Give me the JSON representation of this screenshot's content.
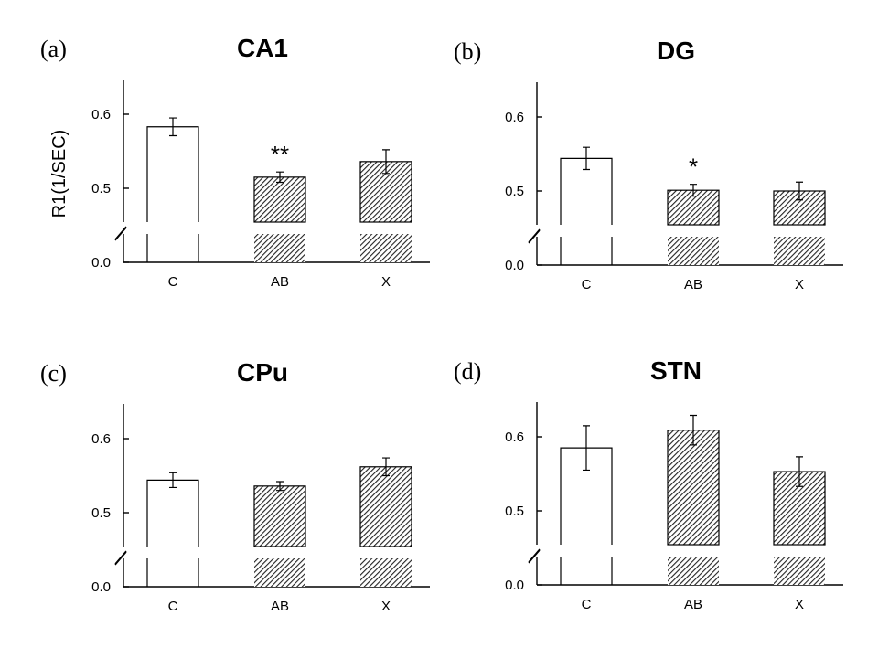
{
  "chart_data": [
    {
      "type": "bar",
      "letter": "(a)",
      "title": "CA1",
      "ylabel": "R1(1/SEC)",
      "yticks": [
        "0.0",
        "0.5",
        "0.6"
      ],
      "ybreak": true,
      "ylim": [
        0.43,
        0.65
      ],
      "categories": [
        "C",
        "AB",
        "X"
      ],
      "values": [
        0.583,
        0.515,
        0.536
      ],
      "errors": [
        0.012,
        0.007,
        0.016
      ],
      "patterns": [
        "open",
        "hatched",
        "hatched"
      ],
      "significance": [
        "",
        "**",
        ""
      ]
    },
    {
      "type": "bar",
      "letter": "(b)",
      "title": "DG",
      "ylabel": "",
      "yticks": [
        "0.0",
        "0.5",
        "0.6"
      ],
      "ybreak": true,
      "ylim": [
        0.43,
        0.65
      ],
      "categories": [
        "C",
        "AB",
        "X"
      ],
      "values": [
        0.544,
        0.501,
        0.5
      ],
      "errors": [
        0.015,
        0.008,
        0.012
      ],
      "patterns": [
        "open",
        "hatched",
        "hatched"
      ],
      "significance": [
        "",
        "*",
        ""
      ]
    },
    {
      "type": "bar",
      "letter": "(c)",
      "title": "CPu",
      "ylabel": "",
      "yticks": [
        "0.0",
        "0.5",
        "0.6"
      ],
      "ybreak": true,
      "ylim": [
        0.43,
        0.65
      ],
      "categories": [
        "C",
        "AB",
        "X"
      ],
      "values": [
        0.544,
        0.536,
        0.562
      ],
      "errors": [
        0.01,
        0.006,
        0.012
      ],
      "patterns": [
        "open",
        "hatched",
        "hatched"
      ],
      "significance": [
        "",
        "",
        ""
      ]
    },
    {
      "type": "bar",
      "letter": "(d)",
      "title": "STN",
      "ylabel": "",
      "yticks": [
        "0.0",
        "0.5",
        "0.6"
      ],
      "ybreak": true,
      "ylim": [
        0.43,
        0.65
      ],
      "categories": [
        "C",
        "AB",
        "X"
      ],
      "values": [
        0.585,
        0.609,
        0.553
      ],
      "errors": [
        0.03,
        0.02,
        0.02
      ],
      "patterns": [
        "open",
        "hatched",
        "hatched"
      ],
      "significance": [
        "",
        "",
        ""
      ]
    }
  ]
}
